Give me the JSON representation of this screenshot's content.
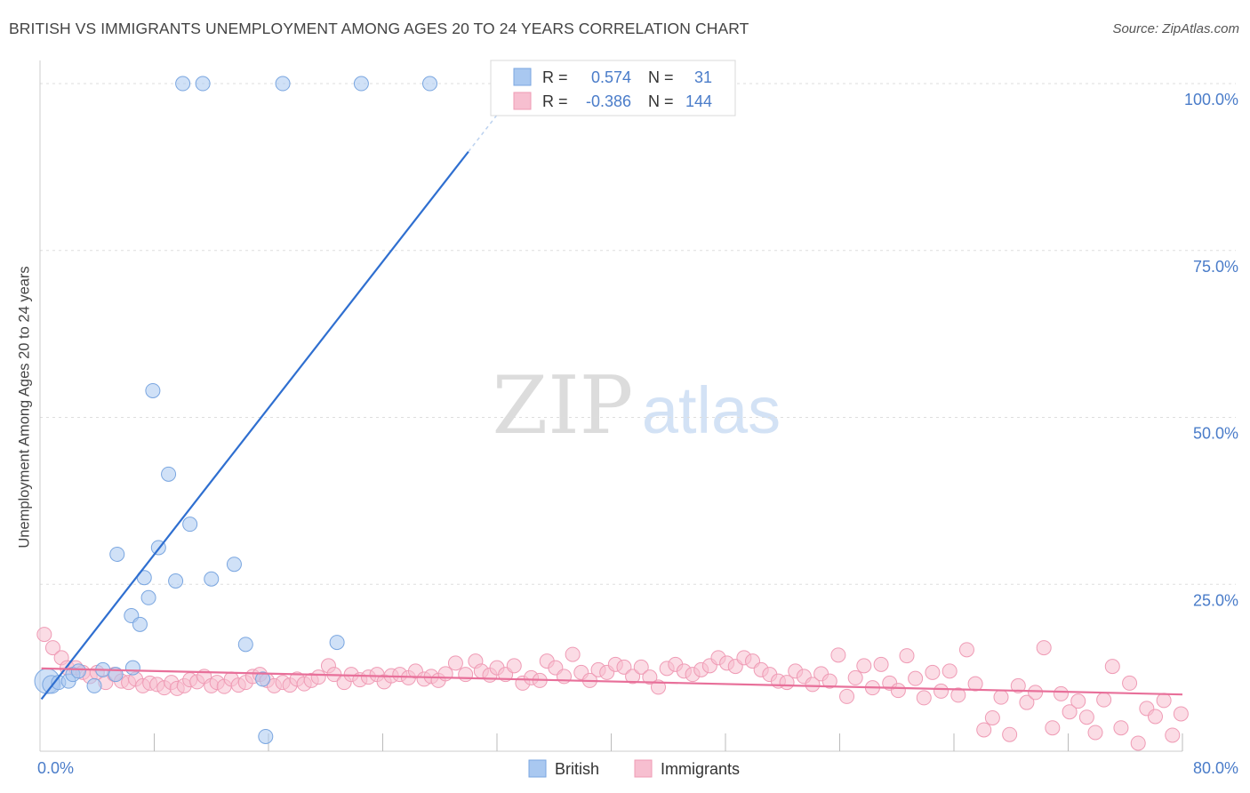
{
  "header": {
    "title": "BRITISH VS IMMIGRANTS UNEMPLOYMENT AMONG AGES 20 TO 24 YEARS CORRELATION CHART",
    "source": "Source: ZipAtlas.com"
  },
  "watermark": {
    "zip": "ZIP",
    "atlas": "atlas"
  },
  "legend_box": {
    "rows": [
      {
        "r_label": "R =",
        "r_value": "0.574",
        "n_label": "N =",
        "n_value": "31",
        "color": "#a9c8f0",
        "stroke": "#7aa6e0"
      },
      {
        "r_label": "R =",
        "r_value": "-0.386",
        "n_label": "N =",
        "n_value": "144",
        "color": "#f7bfd0",
        "stroke": "#ef9bb5"
      }
    ]
  },
  "bottom_legend": [
    {
      "label": "British",
      "color": "#a9c8f0",
      "stroke": "#7aa6e0"
    },
    {
      "label": "Immigrants",
      "color": "#f7bfd0",
      "stroke": "#ef9bb5"
    }
  ],
  "chart_data": {
    "type": "scatter",
    "title": "BRITISH VS IMMIGRANTS UNEMPLOYMENT AMONG AGES 20 TO 24 YEARS CORRELATION CHART",
    "xlabel": "",
    "ylabel": "Unemployment Among Ages 20 to 24 years",
    "xlim": [
      0,
      80
    ],
    "ylim": [
      0,
      102
    ],
    "x_tick_labels": [
      {
        "value": 0,
        "label": "0.0%"
      },
      {
        "value": 80,
        "label": "80.0%"
      }
    ],
    "y_tick_labels": [
      {
        "value": 25,
        "label": "25.0%"
      },
      {
        "value": 50,
        "label": "50.0%"
      },
      {
        "value": 75,
        "label": "75.0%"
      },
      {
        "value": 100,
        "label": "100.0%"
      }
    ],
    "x_minor_ticks": [
      8,
      16,
      24,
      32,
      40,
      48,
      56,
      64,
      72,
      80
    ],
    "grid": true,
    "colors": {
      "british": "#a9c8f0",
      "british_stroke": "#7aa6e0",
      "british_line": "#2f6fd0",
      "immigrants": "#f7bfd0",
      "immigrants_stroke": "#ef9bb5",
      "immigrants_line": "#e8709a",
      "axis_text": "#4a7cc9"
    },
    "series": [
      {
        "name": "British",
        "r": 0.574,
        "n": 31,
        "trend": {
          "x0": 0.1,
          "y0": 7.8,
          "x1": 30,
          "y1": 89.8,
          "x_dash_end": 32,
          "y_dash_end": 95.3
        },
        "points": [
          [
            0.5,
            10.5,
            14
          ],
          [
            0.8,
            10,
            10
          ],
          [
            1.3,
            10.3,
            8
          ],
          [
            2.0,
            10.5,
            8
          ],
          [
            2.3,
            11.5,
            8
          ],
          [
            2.7,
            12,
            8
          ],
          [
            3.8,
            9.8,
            8
          ],
          [
            4.4,
            12.2,
            8
          ],
          [
            5.3,
            11.5,
            8
          ],
          [
            6.4,
            20.3,
            8
          ],
          [
            5.4,
            29.5,
            8
          ],
          [
            7.0,
            19,
            8
          ],
          [
            6.5,
            12.5,
            8
          ],
          [
            7.6,
            23,
            8
          ],
          [
            7.3,
            26,
            8
          ],
          [
            7.9,
            54,
            8
          ],
          [
            8.3,
            30.5,
            8
          ],
          [
            9.0,
            41.5,
            8
          ],
          [
            9.5,
            25.5,
            8
          ],
          [
            10.5,
            34,
            8
          ],
          [
            12.0,
            25.8,
            8
          ],
          [
            13.6,
            28,
            8
          ],
          [
            14.4,
            16,
            8
          ],
          [
            15.6,
            10.8,
            8
          ],
          [
            15.8,
            2.2,
            8
          ],
          [
            20.8,
            16.3,
            8
          ],
          [
            10.0,
            100,
            8
          ],
          [
            11.4,
            100,
            8
          ],
          [
            17.0,
            100,
            8
          ],
          [
            22.5,
            100,
            8
          ],
          [
            27.3,
            100,
            8
          ]
        ]
      },
      {
        "name": "Immigrants",
        "r": -0.386,
        "n": 144,
        "trend": {
          "x0": 0.1,
          "y0": 12.4,
          "x1": 80,
          "y1": 8.5
        },
        "points": [
          [
            0.3,
            17.5
          ],
          [
            0.9,
            15.5
          ],
          [
            1.5,
            14
          ],
          [
            1.9,
            12.5
          ],
          [
            2.5,
            12.5
          ],
          [
            3,
            11.8
          ],
          [
            3.5,
            11.2
          ],
          [
            4,
            11.8
          ],
          [
            4.6,
            10.3
          ],
          [
            5.2,
            11.5
          ],
          [
            5.7,
            10.5
          ],
          [
            6.2,
            10.3
          ],
          [
            6.7,
            10.8
          ],
          [
            7.2,
            9.8
          ],
          [
            7.7,
            10.2
          ],
          [
            8.2,
            10
          ],
          [
            8.7,
            9.5
          ],
          [
            9.2,
            10.3
          ],
          [
            9.6,
            9.4
          ],
          [
            10.1,
            9.8
          ],
          [
            10.5,
            10.7
          ],
          [
            11,
            10.4
          ],
          [
            11.5,
            11.2
          ],
          [
            12,
            9.8
          ],
          [
            12.4,
            10.3
          ],
          [
            12.9,
            9.7
          ],
          [
            13.4,
            10.8
          ],
          [
            13.9,
            9.9
          ],
          [
            14.4,
            10.3
          ],
          [
            14.9,
            11.2
          ],
          [
            15.4,
            11.5
          ],
          [
            15.9,
            10.6
          ],
          [
            16.4,
            9.8
          ],
          [
            17,
            10.3
          ],
          [
            17.5,
            9.9
          ],
          [
            18,
            10.8
          ],
          [
            18.5,
            10.1
          ],
          [
            19,
            10.6
          ],
          [
            19.5,
            11.1
          ],
          [
            20.2,
            12.8
          ],
          [
            20.6,
            11.5
          ],
          [
            21.3,
            10.3
          ],
          [
            21.8,
            11.5
          ],
          [
            22.4,
            10.7
          ],
          [
            23,
            11.1
          ],
          [
            23.6,
            11.5
          ],
          [
            24.1,
            10.4
          ],
          [
            24.6,
            11.3
          ],
          [
            25.2,
            11.5
          ],
          [
            25.8,
            11
          ],
          [
            26.3,
            12
          ],
          [
            26.9,
            10.8
          ],
          [
            27.4,
            11.2
          ],
          [
            27.9,
            10.6
          ],
          [
            28.4,
            11.6
          ],
          [
            29.1,
            13.2
          ],
          [
            29.8,
            11.5
          ],
          [
            30.5,
            13.5
          ],
          [
            30.9,
            12
          ],
          [
            31.5,
            11.4
          ],
          [
            32,
            12.5
          ],
          [
            32.6,
            11.5
          ],
          [
            33.2,
            12.8
          ],
          [
            33.8,
            10.2
          ],
          [
            34.4,
            11
          ],
          [
            35,
            10.6
          ],
          [
            35.5,
            13.5
          ],
          [
            36.1,
            12.5
          ],
          [
            36.7,
            11.2
          ],
          [
            37.3,
            14.5
          ],
          [
            37.9,
            11.8
          ],
          [
            38.5,
            10.6
          ],
          [
            39.1,
            12.2
          ],
          [
            39.7,
            11.8
          ],
          [
            40.3,
            13
          ],
          [
            40.9,
            12.6
          ],
          [
            41.5,
            11.2
          ],
          [
            42.1,
            12.6
          ],
          [
            42.7,
            11.1
          ],
          [
            43.3,
            9.6
          ],
          [
            43.9,
            12.4
          ],
          [
            44.5,
            13
          ],
          [
            45.1,
            12
          ],
          [
            45.7,
            11.5
          ],
          [
            46.3,
            12.2
          ],
          [
            46.9,
            12.8
          ],
          [
            47.5,
            14
          ],
          [
            48.1,
            13.2
          ],
          [
            48.7,
            12.7
          ],
          [
            49.3,
            14
          ],
          [
            49.9,
            13.5
          ],
          [
            50.5,
            12.2
          ],
          [
            51.1,
            11.5
          ],
          [
            51.7,
            10.5
          ],
          [
            52.3,
            10.3
          ],
          [
            52.9,
            12
          ],
          [
            53.5,
            11.2
          ],
          [
            54.1,
            10
          ],
          [
            54.7,
            11.6
          ],
          [
            55.3,
            10.5
          ],
          [
            55.9,
            14.4
          ],
          [
            56.5,
            8.2
          ],
          [
            57.1,
            11
          ],
          [
            57.7,
            12.8
          ],
          [
            58.3,
            9.5
          ],
          [
            58.9,
            13
          ],
          [
            59.5,
            10.2
          ],
          [
            60.1,
            9.1
          ],
          [
            60.7,
            14.3
          ],
          [
            61.3,
            10.9
          ],
          [
            61.9,
            8
          ],
          [
            62.5,
            11.8
          ],
          [
            63.1,
            9
          ],
          [
            63.7,
            12
          ],
          [
            64.3,
            8.4
          ],
          [
            64.9,
            15.2
          ],
          [
            65.5,
            10.1
          ],
          [
            66.1,
            3.2
          ],
          [
            66.7,
            5
          ],
          [
            67.3,
            8.1
          ],
          [
            67.9,
            2.5
          ],
          [
            68.5,
            9.8
          ],
          [
            69.1,
            7.3
          ],
          [
            69.7,
            8.8
          ],
          [
            70.3,
            15.5
          ],
          [
            70.9,
            3.5
          ],
          [
            71.5,
            8.6
          ],
          [
            72.1,
            5.9
          ],
          [
            72.7,
            7.5
          ],
          [
            73.3,
            5.1
          ],
          [
            73.9,
            2.8
          ],
          [
            74.5,
            7.7
          ],
          [
            75.1,
            12.7
          ],
          [
            75.7,
            3.5
          ],
          [
            76.3,
            10.2
          ],
          [
            76.9,
            1.2
          ],
          [
            77.5,
            6.4
          ],
          [
            78.1,
            5.2
          ],
          [
            78.7,
            7.6
          ],
          [
            79.3,
            2.4
          ],
          [
            79.9,
            5.6
          ]
        ]
      }
    ]
  }
}
